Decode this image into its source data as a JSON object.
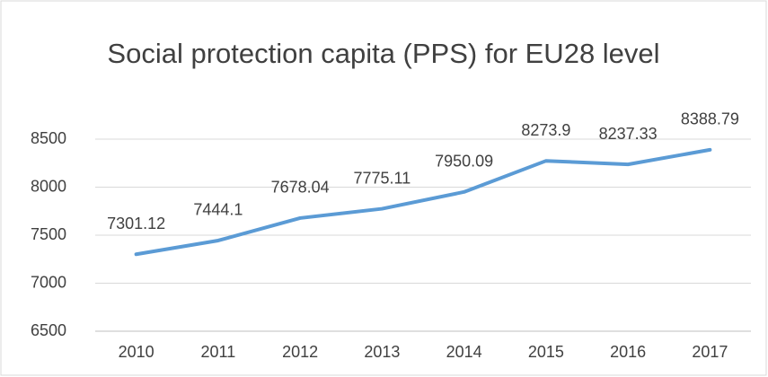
{
  "chart_data": {
    "type": "line",
    "title": "Social protection capita (PPS) for  EU28 level",
    "categories": [
      "2010",
      "2011",
      "2012",
      "2013",
      "2014",
      "2015",
      "2016",
      "2017"
    ],
    "series": [
      {
        "name": "Social protection capita (PPS)",
        "color": "#5b9bd5",
        "values": [
          7301.12,
          7444.1,
          7678.04,
          7775.11,
          7950.09,
          8273.9,
          8237.33,
          8388.79
        ]
      }
    ],
    "ylim": [
      6500,
      8500
    ],
    "yticks": [
      6500,
      7000,
      7500,
      8000,
      8500
    ],
    "grid": true
  }
}
